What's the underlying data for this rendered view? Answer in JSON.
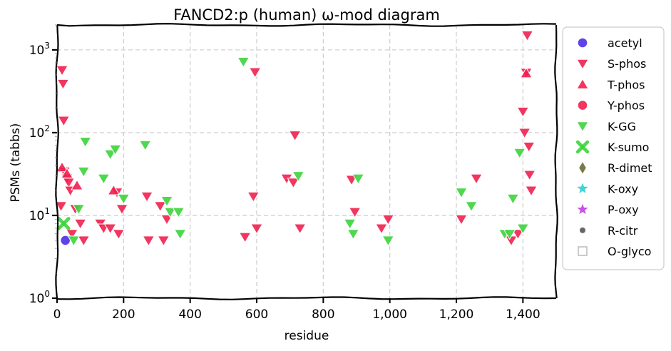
{
  "chart_data": {
    "type": "scatter",
    "title": "FANCD2:p (human) ω-mod diagram",
    "xlabel": "residue",
    "ylabel": "PSMs (tabbs)",
    "xlim": [
      0,
      1500
    ],
    "ylim": [
      1,
      2000
    ],
    "yscale": "log",
    "grid": true,
    "legend_position": "right-outside",
    "x_ticks": [
      {
        "value": 0,
        "label": "0"
      },
      {
        "value": 200,
        "label": "200"
      },
      {
        "value": 400,
        "label": "400"
      },
      {
        "value": 600,
        "label": "600"
      },
      {
        "value": 800,
        "label": "800"
      },
      {
        "value": 1000,
        "label": "1,000"
      },
      {
        "value": 1200,
        "label": "1,200"
      },
      {
        "value": 1400,
        "label": "1,400"
      }
    ],
    "y_ticks": [
      {
        "value": 1,
        "base": "10",
        "exp": "0"
      },
      {
        "value": 10,
        "base": "10",
        "exp": "1"
      },
      {
        "value": 100,
        "base": "10",
        "exp": "2"
      },
      {
        "value": 1000,
        "base": "10",
        "exp": "3"
      }
    ],
    "series": [
      {
        "name": "acetyl",
        "marker": "circle",
        "color": "#4b2fe6",
        "points": [
          [
            25,
            5
          ]
        ]
      },
      {
        "name": "S-phos",
        "marker": "triangle-down",
        "color": "#f0204f",
        "points": [
          [
            15,
            570
          ],
          [
            18,
            390
          ],
          [
            20,
            140
          ],
          [
            12,
            13
          ],
          [
            22,
            34
          ],
          [
            30,
            28
          ],
          [
            35,
            25
          ],
          [
            40,
            20
          ],
          [
            45,
            6
          ],
          [
            55,
            12
          ],
          [
            70,
            8
          ],
          [
            80,
            5
          ],
          [
            130,
            8
          ],
          [
            140,
            7
          ],
          [
            160,
            7
          ],
          [
            180,
            19
          ],
          [
            185,
            6
          ],
          [
            195,
            12
          ],
          [
            270,
            17
          ],
          [
            275,
            5
          ],
          [
            310,
            13
          ],
          [
            320,
            5
          ],
          [
            330,
            9
          ],
          [
            565,
            5.5
          ],
          [
            590,
            17
          ],
          [
            595,
            540
          ],
          [
            600,
            7
          ],
          [
            690,
            28
          ],
          [
            710,
            25
          ],
          [
            715,
            93
          ],
          [
            730,
            7
          ],
          [
            885,
            27
          ],
          [
            895,
            11
          ],
          [
            975,
            7
          ],
          [
            995,
            9
          ],
          [
            1215,
            9
          ],
          [
            1260,
            28
          ],
          [
            1365,
            5
          ],
          [
            1385,
            6
          ],
          [
            1400,
            180
          ],
          [
            1405,
            100
          ],
          [
            1410,
            530
          ],
          [
            1413,
            1500
          ],
          [
            1418,
            68
          ],
          [
            1420,
            31
          ],
          [
            1425,
            20
          ]
        ]
      },
      {
        "name": "T-phos",
        "marker": "triangle-up",
        "color": "#f0204f",
        "points": [
          [
            15,
            38
          ],
          [
            30,
            32
          ],
          [
            60,
            23
          ],
          [
            170,
            20
          ],
          [
            1410,
            520
          ]
        ]
      },
      {
        "name": "Y-phos",
        "marker": "circle",
        "color": "#f0204f",
        "points": []
      },
      {
        "name": "K-GG",
        "marker": "triangle-down",
        "color": "#3cd43c",
        "points": [
          [
            50,
            5
          ],
          [
            65,
            12
          ],
          [
            80,
            34
          ],
          [
            85,
            78
          ],
          [
            140,
            28
          ],
          [
            160,
            55
          ],
          [
            175,
            63
          ],
          [
            200,
            16
          ],
          [
            265,
            71
          ],
          [
            330,
            15
          ],
          [
            340,
            11
          ],
          [
            365,
            11
          ],
          [
            370,
            6
          ],
          [
            560,
            720
          ],
          [
            725,
            30
          ],
          [
            880,
            8
          ],
          [
            890,
            6
          ],
          [
            905,
            28
          ],
          [
            995,
            5
          ],
          [
            1215,
            19
          ],
          [
            1245,
            13
          ],
          [
            1345,
            6
          ],
          [
            1360,
            6
          ],
          [
            1370,
            16
          ],
          [
            1390,
            57
          ],
          [
            1400,
            7
          ]
        ]
      },
      {
        "name": "K-sumo",
        "marker": "x",
        "color": "#3cd43c",
        "points": [
          [
            20,
            8
          ]
        ]
      },
      {
        "name": "R-dimet",
        "marker": "diamond",
        "color": "#6b6b35",
        "points": []
      },
      {
        "name": "K-oxy",
        "marker": "star",
        "color": "#2ad0d0",
        "points": []
      },
      {
        "name": "P-oxy",
        "marker": "star",
        "color": "#c040e0",
        "points": []
      },
      {
        "name": "R-citr",
        "marker": "dot",
        "color": "#666666",
        "points": []
      },
      {
        "name": "O-glyco",
        "marker": "square-open",
        "color": "#aaaaaa",
        "points": []
      }
    ]
  }
}
